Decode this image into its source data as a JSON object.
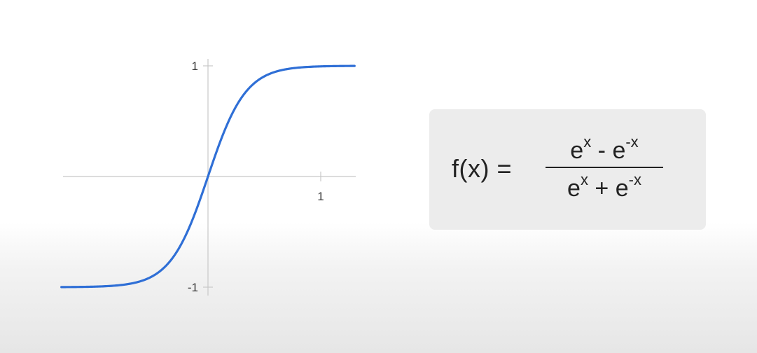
{
  "chart_data": {
    "type": "line",
    "title": "",
    "xlabel": "",
    "ylabel": "",
    "xlim": [
      -1.3,
      1.3
    ],
    "ylim": [
      -1,
      1
    ],
    "x_ticks": [
      {
        "value": 1,
        "label": "1"
      }
    ],
    "y_ticks": [
      {
        "value": 1,
        "label": "1"
      },
      {
        "value": -1,
        "label": "-1"
      }
    ],
    "grid": false,
    "series": [
      {
        "function": "tanh",
        "color": "#2f6fd6",
        "x": [
          -1.3,
          -1.0,
          -0.75,
          -0.5,
          -0.3,
          -0.15,
          0,
          0.15,
          0.3,
          0.5,
          0.75,
          1.0,
          1.3
        ],
        "y": [
          -0.99,
          -0.98,
          -0.95,
          -0.88,
          -0.71,
          -0.45,
          0,
          0.45,
          0.71,
          0.88,
          0.95,
          0.98,
          0.99
        ]
      }
    ]
  },
  "formula": {
    "lhs": "f(x) =",
    "numerator": {
      "a": "e",
      "a_sup": "x",
      "op": " - ",
      "b": "e",
      "b_sup": "-x"
    },
    "denominator": {
      "a": "e",
      "a_sup": "x",
      "op": " + ",
      "b": "e",
      "b_sup": "-x"
    }
  },
  "colors": {
    "curve": "#2f6fd6",
    "axis": "#c8c8c8",
    "card": "#ececec"
  }
}
